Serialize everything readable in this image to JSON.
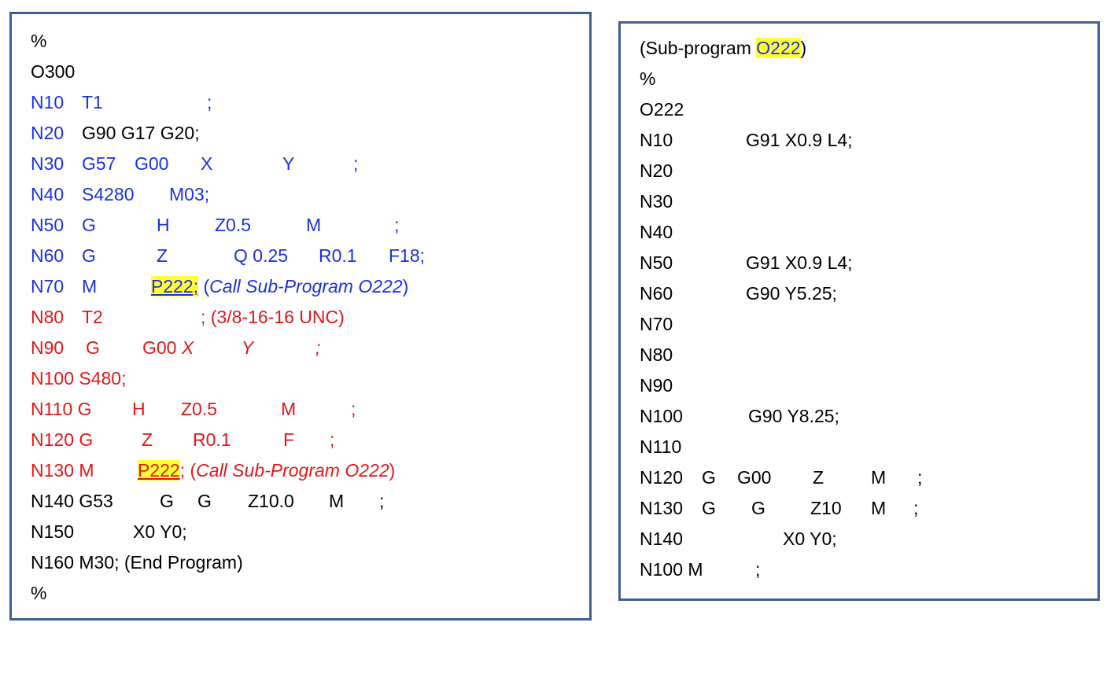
{
  "colors": {
    "border": "#3f5d96",
    "blue": "#1a31e6",
    "red": "#e01818",
    "highlight": "#ffff33"
  },
  "main_program": {
    "percent_open": "%",
    "program_number": "O300",
    "lines": [
      {
        "id": "n10",
        "color": "blue",
        "tokens": [
          "N10",
          "T1",
          ";"
        ]
      },
      {
        "id": "n20",
        "color": "mixed",
        "tokens": [
          "N20",
          "G90 G17 G20;"
        ]
      },
      {
        "id": "n30",
        "color": "blue",
        "tokens": [
          "N30",
          "G57",
          "G00",
          "X",
          "Y",
          ";"
        ]
      },
      {
        "id": "n40",
        "color": "blue",
        "tokens": [
          "N40",
          "S4280",
          "M03;"
        ]
      },
      {
        "id": "n50",
        "color": "blue",
        "tokens": [
          "N50",
          "G",
          "H",
          "Z0.5",
          "M",
          ";"
        ]
      },
      {
        "id": "n60",
        "color": "blue",
        "tokens": [
          "N60",
          "G",
          "Z",
          "Q 0.25",
          "R0.1",
          "F18;"
        ]
      },
      {
        "id": "n70",
        "color": "blue",
        "tokens": [
          "N70",
          "M",
          "P222;",
          " (",
          "Call Sub-Program O222",
          ")"
        ]
      },
      {
        "id": "n80",
        "color": "red",
        "tokens": [
          "N80",
          "T2",
          "; (3/8-16-16 UNC)"
        ]
      },
      {
        "id": "n90",
        "color": "red",
        "tokens": [
          "N90",
          "G",
          "G00 ",
          "X",
          "Y",
          ";"
        ]
      },
      {
        "id": "n100",
        "color": "red",
        "tokens": [
          "N100 S480;"
        ]
      },
      {
        "id": "n110",
        "color": "red",
        "tokens": [
          "N110 G",
          "H",
          "Z0.5",
          "M",
          ";"
        ]
      },
      {
        "id": "n120",
        "color": "red",
        "tokens": [
          "N120 G",
          "Z",
          "R0.1",
          "F",
          ";"
        ]
      },
      {
        "id": "n130",
        "color": "red",
        "tokens": [
          "N130 M",
          "P222",
          "; (",
          "Call Sub-Program O222",
          ")"
        ]
      },
      {
        "id": "n140",
        "color": "black",
        "tokens": [
          "N140 G53",
          "G",
          "G",
          "Z10.0",
          "M",
          ";"
        ]
      },
      {
        "id": "n150",
        "color": "black",
        "tokens": [
          "N150",
          "X0 Y0;"
        ]
      },
      {
        "id": "n160",
        "color": "black",
        "tokens": [
          "N160 M30; (End Program)"
        ]
      }
    ],
    "percent_close": "%"
  },
  "sub_program": {
    "header_prefix": "(Sub-program ",
    "header_number": "O222",
    "header_suffix": ")",
    "percent": "%",
    "program_number": "O222",
    "lines": [
      {
        "id": "n10",
        "tokens": [
          "N10",
          "G91 X0.9 L4;"
        ]
      },
      {
        "id": "n20",
        "tokens": [
          "N20"
        ]
      },
      {
        "id": "n30",
        "tokens": [
          "N30"
        ]
      },
      {
        "id": "n40",
        "tokens": [
          "N40"
        ]
      },
      {
        "id": "n50",
        "tokens": [
          "N50",
          "G91 X0.9 L4;"
        ]
      },
      {
        "id": "n60",
        "tokens": [
          "N60",
          "G90 Y5.25;"
        ]
      },
      {
        "id": "n70",
        "tokens": [
          "N70"
        ]
      },
      {
        "id": "n80",
        "tokens": [
          "N80"
        ]
      },
      {
        "id": "n90",
        "tokens": [
          "N90"
        ]
      },
      {
        "id": "n100",
        "tokens": [
          "N100",
          "G90 Y8.25;"
        ]
      },
      {
        "id": "n110",
        "tokens": [
          "N110"
        ]
      },
      {
        "id": "n120",
        "tokens": [
          "N120",
          "G",
          "G00",
          "Z",
          "M",
          ";"
        ]
      },
      {
        "id": "n130",
        "tokens": [
          "N130",
          "G",
          "G",
          "Z10",
          "M",
          ";"
        ]
      },
      {
        "id": "n140",
        "tokens": [
          "N140",
          "X0 Y0;"
        ]
      },
      {
        "id": "n100b",
        "tokens": [
          "N100 M",
          ";"
        ]
      }
    ]
  }
}
